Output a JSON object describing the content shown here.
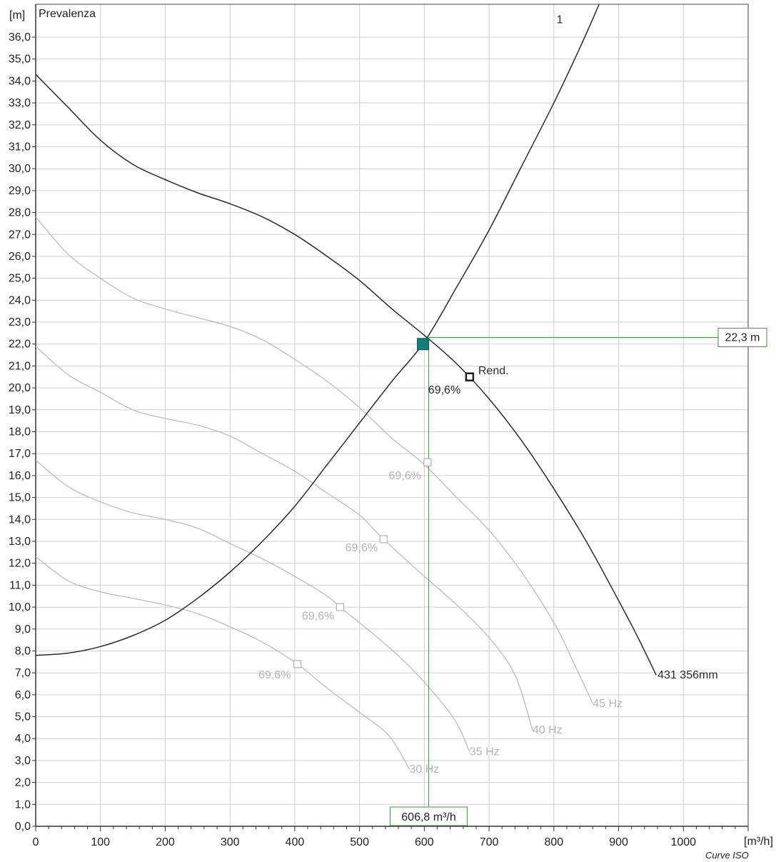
{
  "chart_data": {
    "type": "line",
    "title": "Prevalenza",
    "ylabel_unit": "[m]",
    "xlabel_unit": "[m³/h]",
    "footer_note": "Curve ISO",
    "xlim": [
      0,
      1100
    ],
    "ylim": [
      0,
      37.5
    ],
    "x_ticks": [
      "0",
      "100",
      "200",
      "300",
      "400",
      "500",
      "600",
      "700",
      "800",
      "900",
      "1000"
    ],
    "y_ticks": [
      "0,0",
      "1,0",
      "2,0",
      "3,0",
      "4,0",
      "5,0",
      "6,0",
      "7,0",
      "8,0",
      "9,0",
      "10,0",
      "11,0",
      "12,0",
      "13,0",
      "14,0",
      "15,0",
      "16,0",
      "17,0",
      "18,0",
      "19,0",
      "20,0",
      "21,0",
      "22,0",
      "23,0",
      "24,0",
      "25,0",
      "26,0",
      "27,0",
      "28,0",
      "29,0",
      "30,0",
      "31,0",
      "32,0",
      "33,0",
      "34,0",
      "35,0",
      "36,0"
    ],
    "grid": true,
    "colors": {
      "main_curve": "#2b2b2b",
      "speed_curves": "#bcbcbc",
      "grid": "#cfcfcf",
      "operating_point": "#0d7f7f",
      "guide": "#3a9a3a"
    },
    "main_curve": {
      "label": "431 356mm",
      "label_at": [
        958,
        6.9
      ],
      "points": [
        [
          0,
          34.3
        ],
        [
          50,
          32.8
        ],
        [
          100,
          31.3
        ],
        [
          150,
          30.2
        ],
        [
          200,
          29.5
        ],
        [
          250,
          28.9
        ],
        [
          300,
          28.4
        ],
        [
          350,
          27.8
        ],
        [
          400,
          27.0
        ],
        [
          450,
          26.0
        ],
        [
          500,
          24.9
        ],
        [
          550,
          23.6
        ],
        [
          600,
          22.4
        ],
        [
          650,
          21.1
        ],
        [
          700,
          19.5
        ],
        [
          750,
          17.6
        ],
        [
          800,
          15.4
        ],
        [
          850,
          13.0
        ],
        [
          900,
          10.3
        ],
        [
          930,
          8.6
        ],
        [
          958,
          6.9
        ]
      ]
    },
    "system_curve": {
      "label": "1",
      "label_at": [
        835,
        36.8
      ],
      "points": [
        [
          0,
          7.8
        ],
        [
          50,
          7.9
        ],
        [
          100,
          8.2
        ],
        [
          150,
          8.7
        ],
        [
          200,
          9.4
        ],
        [
          250,
          10.4
        ],
        [
          300,
          11.6
        ],
        [
          350,
          13.0
        ],
        [
          400,
          14.6
        ],
        [
          450,
          16.5
        ],
        [
          500,
          18.4
        ],
        [
          550,
          20.3
        ],
        [
          600,
          22.1
        ],
        [
          650,
          24.6
        ],
        [
          700,
          27.2
        ],
        [
          750,
          30.1
        ],
        [
          800,
          33.0
        ],
        [
          840,
          35.5
        ],
        [
          870,
          37.5
        ]
      ]
    },
    "speed_curves": [
      {
        "name": "45 Hz",
        "label_at": [
          860,
          5.6
        ],
        "points": [
          [
            0,
            27.8
          ],
          [
            50,
            26.1
          ],
          [
            100,
            25.0
          ],
          [
            150,
            24.1
          ],
          [
            200,
            23.6
          ],
          [
            250,
            23.2
          ],
          [
            300,
            22.8
          ],
          [
            350,
            22.2
          ],
          [
            400,
            21.3
          ],
          [
            450,
            20.3
          ],
          [
            500,
            19.1
          ],
          [
            550,
            17.7
          ],
          [
            600,
            16.5
          ],
          [
            650,
            15.0
          ],
          [
            700,
            13.5
          ],
          [
            750,
            11.6
          ],
          [
            800,
            9.3
          ],
          [
            830,
            7.5
          ],
          [
            860,
            5.6
          ]
        ]
      },
      {
        "name": "40 Hz",
        "label_at": [
          767,
          4.4
        ],
        "points": [
          [
            0,
            21.9
          ],
          [
            50,
            20.6
          ],
          [
            100,
            19.8
          ],
          [
            150,
            19.0
          ],
          [
            200,
            18.6
          ],
          [
            250,
            18.3
          ],
          [
            300,
            17.8
          ],
          [
            350,
            17.0
          ],
          [
            400,
            16.2
          ],
          [
            450,
            15.2
          ],
          [
            500,
            14.2
          ],
          [
            537,
            13.1
          ],
          [
            600,
            11.4
          ],
          [
            650,
            10.1
          ],
          [
            700,
            8.6
          ],
          [
            740,
            6.9
          ],
          [
            767,
            4.4
          ]
        ]
      },
      {
        "name": "35 Hz",
        "label_at": [
          670,
          3.4
        ],
        "points": [
          [
            0,
            16.7
          ],
          [
            50,
            15.5
          ],
          [
            100,
            14.8
          ],
          [
            150,
            14.3
          ],
          [
            200,
            14.0
          ],
          [
            250,
            13.6
          ],
          [
            300,
            12.9
          ],
          [
            350,
            12.2
          ],
          [
            400,
            11.4
          ],
          [
            450,
            10.5
          ],
          [
            470,
            10.0
          ],
          [
            520,
            8.8
          ],
          [
            570,
            7.5
          ],
          [
            620,
            5.9
          ],
          [
            650,
            4.7
          ],
          [
            670,
            3.4
          ]
        ]
      },
      {
        "name": "30 Hz",
        "label_at": [
          577,
          2.6
        ],
        "points": [
          [
            0,
            12.3
          ],
          [
            50,
            11.2
          ],
          [
            100,
            10.7
          ],
          [
            150,
            10.4
          ],
          [
            200,
            10.1
          ],
          [
            250,
            9.7
          ],
          [
            300,
            9.1
          ],
          [
            350,
            8.4
          ],
          [
            404,
            7.4
          ],
          [
            450,
            6.3
          ],
          [
            500,
            5.2
          ],
          [
            540,
            4.3
          ],
          [
            560,
            3.5
          ],
          [
            577,
            2.6
          ]
        ]
      }
    ],
    "efficiency_markers": [
      {
        "label": "69,6%",
        "x": 670,
        "y": 20.5,
        "label_at": [
          606,
          19.9
        ],
        "style": "dark",
        "extra_label": "Rend."
      },
      {
        "label": "69,6%",
        "x": 605,
        "y": 16.6,
        "label_at": [
          545,
          16.0
        ],
        "style": "light"
      },
      {
        "label": "69,6%",
        "x": 537,
        "y": 13.1,
        "label_at": [
          478,
          12.7
        ],
        "style": "light"
      },
      {
        "label": "69,6%",
        "x": 470,
        "y": 10.0,
        "label_at": [
          411,
          9.6
        ],
        "style": "light"
      },
      {
        "label": "69,6%",
        "x": 404,
        "y": 7.4,
        "label_at": [
          344,
          6.9
        ],
        "style": "light"
      }
    ],
    "operating_point": {
      "x": 598,
      "y": 22.0
    },
    "guide_point": {
      "x": 606.8,
      "y": 22.3
    },
    "flow_readout": "606,8 m³/h",
    "head_readout": "22,3 m"
  }
}
